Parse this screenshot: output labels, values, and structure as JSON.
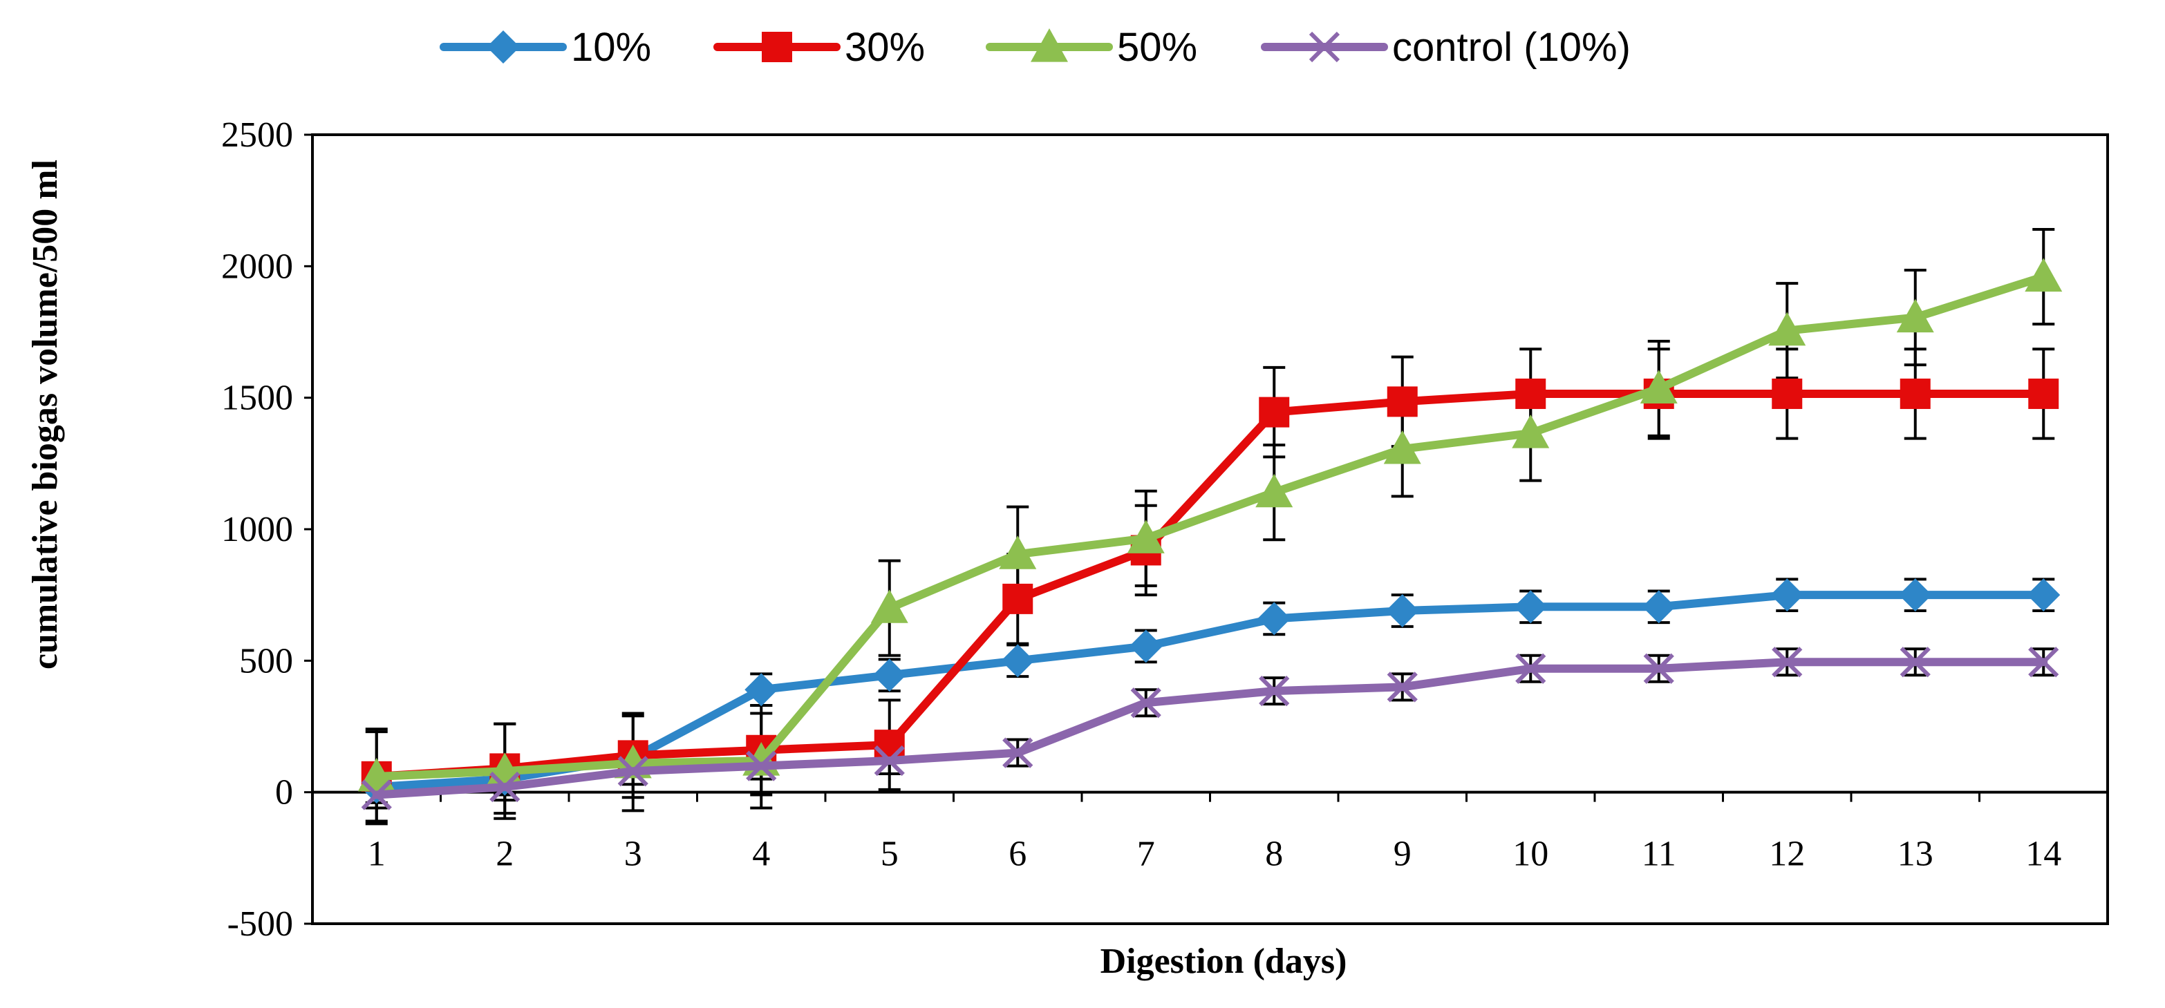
{
  "chart_data": {
    "type": "line",
    "title": "",
    "xlabel": "Digestion (days)",
    "ylabel": "cumulative biogas volume/500 ml",
    "x": [
      1,
      2,
      3,
      4,
      5,
      6,
      7,
      8,
      9,
      10,
      11,
      12,
      13,
      14
    ],
    "xtick_labels": [
      "1",
      "2",
      "3",
      "4",
      "5",
      "6",
      "7",
      "8",
      "9",
      "10",
      "11",
      "12",
      "13",
      "14"
    ],
    "ylim": [
      -500,
      2500
    ],
    "yticks": [
      -500,
      0,
      500,
      1000,
      1500,
      2000,
      2500
    ],
    "ytick_labels": [
      "-500",
      "0",
      "500",
      "1000",
      "1500",
      "2000",
      "2500"
    ],
    "legend_position": "top",
    "grid": false,
    "series": [
      {
        "name": "10%",
        "color": "#2E86C8",
        "marker": "diamond",
        "values": [
          20,
          50,
          130,
          390,
          445,
          500,
          555,
          660,
          690,
          705,
          705,
          750,
          750,
          750
        ],
        "errors": [
          60,
          60,
          60,
          60,
          60,
          60,
          60,
          60,
          60,
          60,
          60,
          60,
          60,
          60
        ]
      },
      {
        "name": "30%",
        "color": "#E30B0B",
        "marker": "square",
        "values": [
          60,
          90,
          140,
          160,
          180,
          735,
          920,
          1445,
          1485,
          1515,
          1515,
          1515,
          1515,
          1515
        ],
        "errors": [
          170,
          170,
          160,
          170,
          170,
          170,
          170,
          170,
          170,
          170,
          170,
          170,
          170,
          170
        ]
      },
      {
        "name": "50%",
        "color": "#8DBF4F",
        "marker": "triangle",
        "values": [
          60,
          80,
          110,
          120,
          700,
          905,
          965,
          1140,
          1305,
          1365,
          1535,
          1755,
          1805,
          1960
        ],
        "errors": [
          180,
          180,
          180,
          180,
          180,
          180,
          180,
          180,
          180,
          180,
          180,
          180,
          180,
          180
        ]
      },
      {
        "name": "control (10%)",
        "color": "#8B66AC",
        "marker": "x",
        "values": [
          -10,
          20,
          80,
          100,
          120,
          150,
          340,
          385,
          400,
          470,
          470,
          495,
          495,
          495
        ],
        "errors": [
          50,
          50,
          50,
          50,
          50,
          50,
          50,
          50,
          50,
          50,
          50,
          50,
          50,
          50
        ]
      }
    ]
  }
}
